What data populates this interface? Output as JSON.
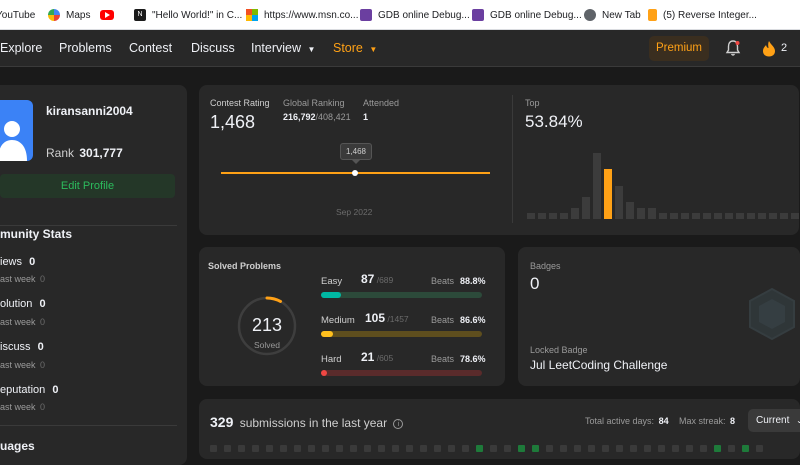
{
  "bookmarks": [
    {
      "label": "YouTube",
      "icon": "youtube-icon"
    },
    {
      "label": "Maps",
      "icon": "google-maps-icon"
    },
    {
      "label": "",
      "icon": "youtube-red-icon"
    },
    {
      "label": "\"Hello World!\" in C...",
      "icon": "hello-world-site-icon"
    },
    {
      "label": "https://www.msn.co...",
      "icon": "microsoft-icon"
    },
    {
      "label": "GDB online Debug...",
      "icon": "gdb-icon"
    },
    {
      "label": "GDB online Debug...",
      "icon": "gdb-icon"
    },
    {
      "label": "New Tab",
      "icon": "globe-icon"
    },
    {
      "label": "(5) Reverse Integer...",
      "icon": "leetcode-icon"
    }
  ],
  "nav": {
    "items": [
      "Explore",
      "Problems",
      "Contest",
      "Discuss",
      "Interview",
      "Store"
    ],
    "premium": "Premium",
    "streak_count": "2",
    "store_color": "#ffa116"
  },
  "profile": {
    "username": "kiransanni2004",
    "rank_label": "Rank",
    "rank_value": "301,777",
    "edit_button": "Edit Profile"
  },
  "community": {
    "title": "munity Stats",
    "items": [
      {
        "label": "iews",
        "value": "0",
        "sub": "ast week",
        "sub_value": "0"
      },
      {
        "label": "olution",
        "value": "0",
        "sub": "ast week",
        "sub_value": "0"
      },
      {
        "label": "iscuss",
        "value": "0",
        "sub": "ast week",
        "sub_value": "0"
      },
      {
        "label": "eputation",
        "value": "0",
        "sub": "ast week",
        "sub_value": "0"
      }
    ],
    "languages_title": "uages"
  },
  "contest": {
    "rating_label": "Contest Rating",
    "rating_value": "1,468",
    "global_label": "Global Ranking",
    "global_value": "216,792",
    "global_total": "/408,421",
    "attended_label": "Attended",
    "attended_value": "1",
    "tooltip": "1,468",
    "date_label": "Sep 2022"
  },
  "top": {
    "label": "Top",
    "value": "53.84%",
    "histogram": [
      1,
      1,
      1,
      1,
      2,
      4,
      12,
      9,
      6,
      3,
      2,
      2,
      1,
      1,
      1,
      1,
      1,
      1,
      1,
      1,
      1,
      1,
      1,
      1,
      1
    ],
    "highlight_index": 7
  },
  "solved": {
    "title": "Solved Problems",
    "total": "213",
    "total_label": "Solved",
    "ring_fraction": 0.08,
    "rows": [
      {
        "name": "Easy",
        "solved": "87",
        "total": "/689",
        "beats_label": "Beats",
        "beats": "88.8%",
        "fraction": 0.126,
        "color": "#00b8a3",
        "track": "#2c4a3a"
      },
      {
        "name": "Medium",
        "solved": "105",
        "total": "/1457",
        "beats_label": "Beats",
        "beats": "86.6%",
        "fraction": 0.072,
        "color": "#ffc01e",
        "track": "#5e4e1e"
      },
      {
        "name": "Hard",
        "solved": "21",
        "total": "/605",
        "beats_label": "Beats",
        "beats": "78.6%",
        "fraction": 0.035,
        "color": "#ef4743",
        "track": "#5a2b2b"
      }
    ]
  },
  "badges": {
    "label": "Badges",
    "count": "0",
    "locked_label": "Locked Badge",
    "locked_name": "Jul LeetCoding Challenge"
  },
  "submissions": {
    "count": "329",
    "text": "submissions in the last year",
    "active_label": "Total active days:",
    "active_value": "84",
    "streak_label": "Max streak:",
    "streak_value": "8",
    "select_value": "Current"
  }
}
